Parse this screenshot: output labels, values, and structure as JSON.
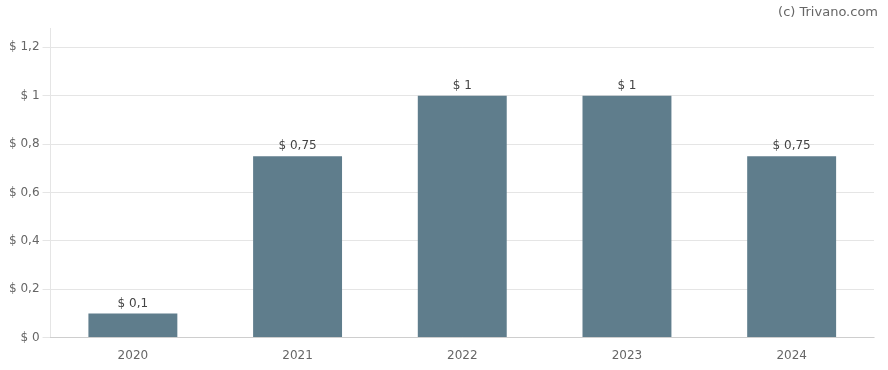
{
  "chart_data": {
    "type": "bar",
    "categories": [
      "2020",
      "2021",
      "2022",
      "2023",
      "2024"
    ],
    "values": [
      0.1,
      0.75,
      1.0,
      1.0,
      0.75
    ],
    "value_labels": [
      "$ 0,1",
      "$ 0,75",
      "$ 1",
      "$ 1",
      "$ 0,75"
    ],
    "data_labels": true,
    "color": "#5f7d8c",
    "ylim": [
      0,
      1.28
    ],
    "yticks": [
      {
        "value": 0,
        "label": "$ 0"
      },
      {
        "value": 0.2,
        "label": "$ 0,2"
      },
      {
        "value": 0.4,
        "label": "$ 0,4"
      },
      {
        "value": 0.6,
        "label": "$ 0,6"
      },
      {
        "value": 0.8,
        "label": "$ 0,8"
      },
      {
        "value": 1.0,
        "label": "$ 1"
      },
      {
        "value": 1.2,
        "label": "$ 1,2"
      }
    ],
    "grid": true,
    "annotations": [
      "(c) Trivano.com"
    ]
  }
}
